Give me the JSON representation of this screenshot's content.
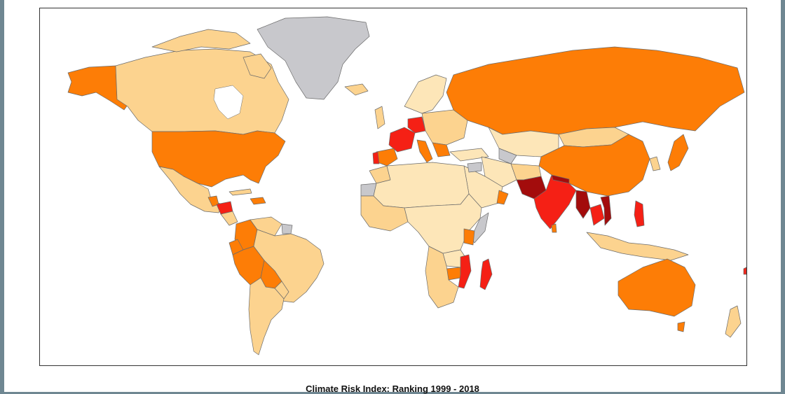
{
  "map": {
    "title": "Climate Risk Index: Ranking 1999 - 2018",
    "colors": {
      "no_data": "#c8c8cc",
      "very_low": "#fde6b8",
      "low": "#fcd38f",
      "medium": "#fd7d06",
      "high": "#f52015",
      "very_high": "#a30c0c",
      "background": "#ffffff"
    }
  }
}
